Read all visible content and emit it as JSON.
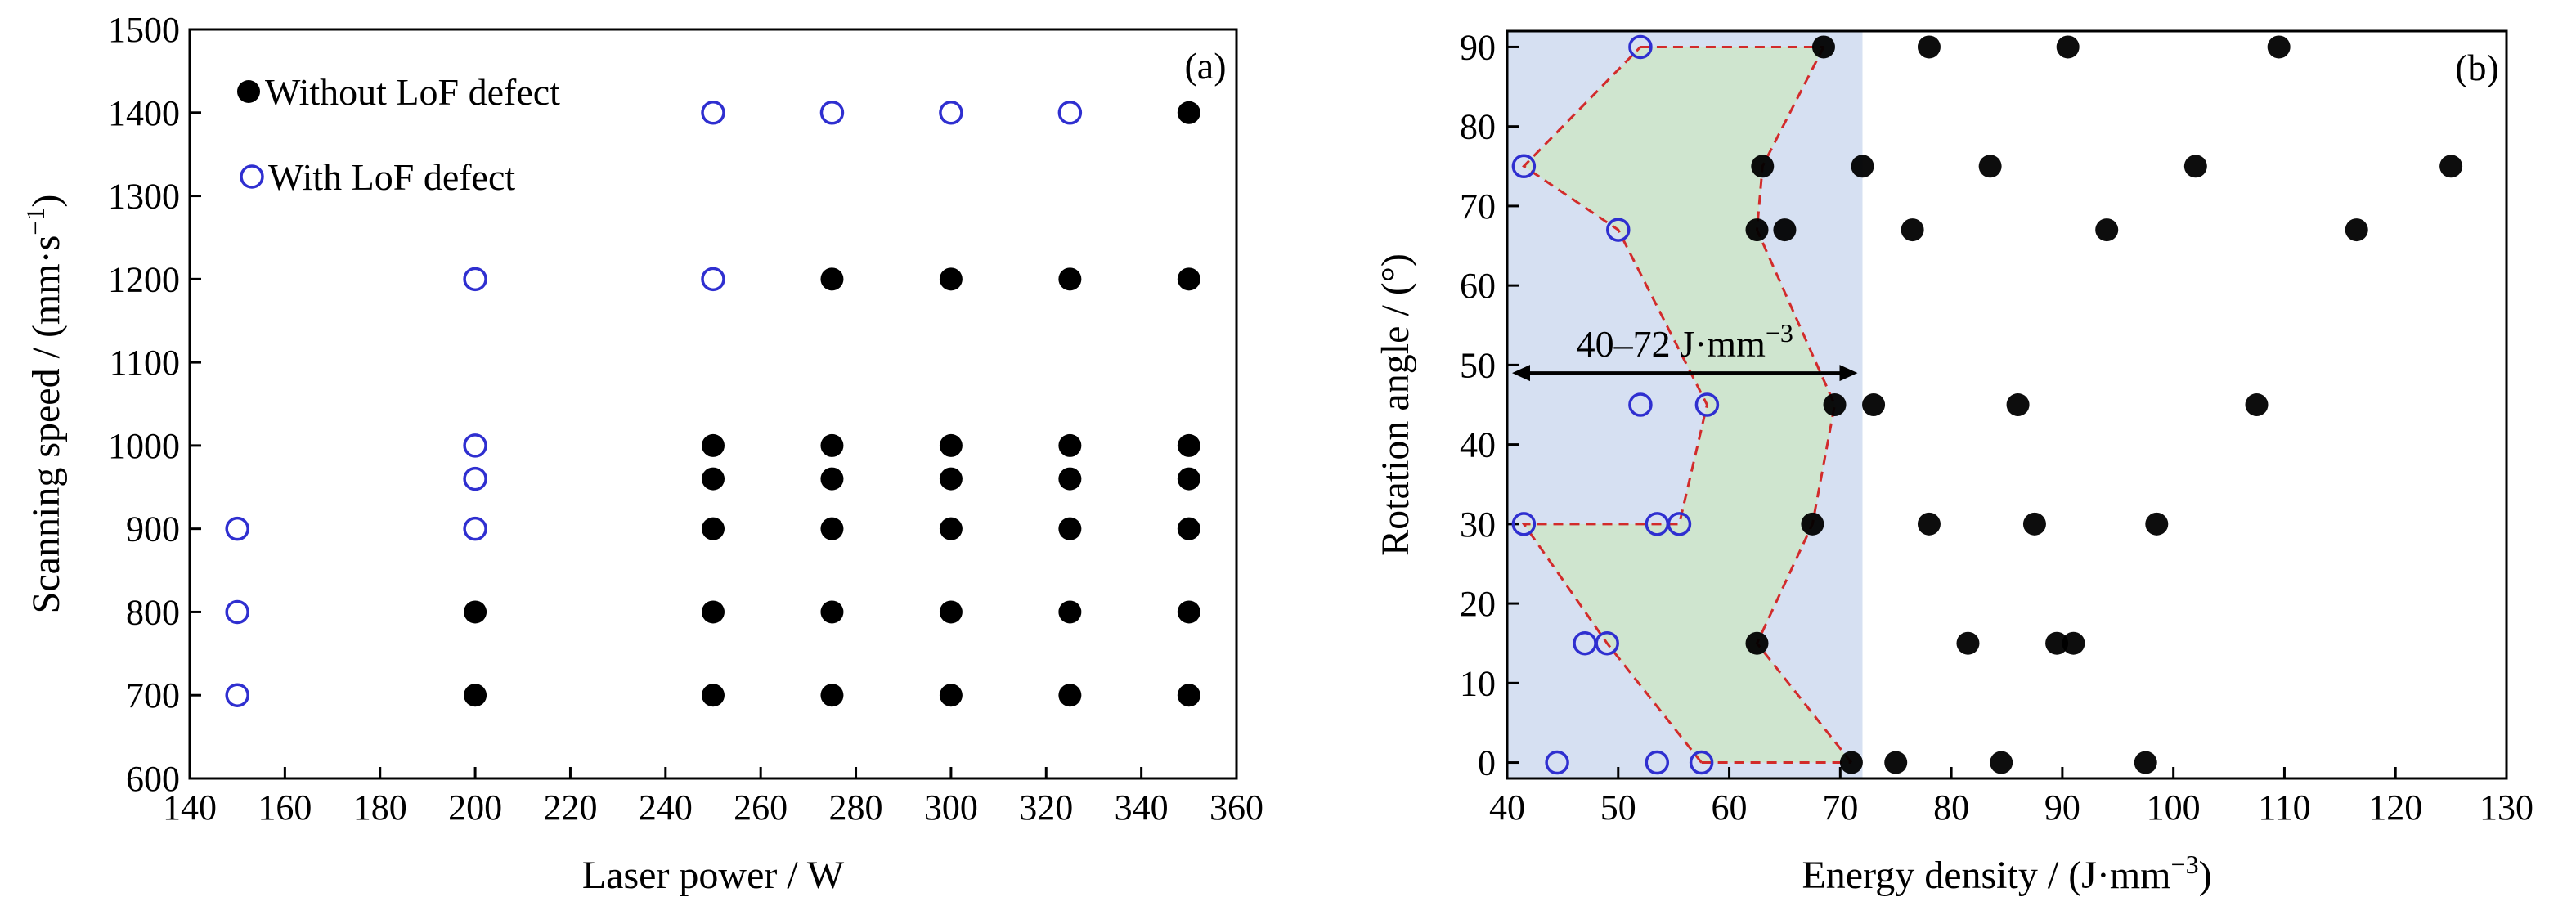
{
  "chart_data": [
    {
      "panel_label": "(a)",
      "type": "scatter",
      "xlabel": "Laser power / W",
      "ylabel_main": "Scanning speed / (mm·s",
      "ylabel_sup": "−1",
      "ylabel_end": ")",
      "xlim": [
        140,
        360
      ],
      "ylim": [
        600,
        1500
      ],
      "xticks": [
        "140",
        "160",
        "180",
        "200",
        "220",
        "240",
        "260",
        "280",
        "300",
        "320",
        "340",
        "360"
      ],
      "yticks": [
        "600",
        "700",
        "800",
        "900",
        "1000",
        "1100",
        "1200",
        "1300",
        "1400",
        "1500"
      ],
      "legend_position": "top-left",
      "series": [
        {
          "name": "Without LoF defect",
          "marker": "filled-circle",
          "color": "#000000",
          "points": [
            [
              200,
              700
            ],
            [
              200,
              800
            ],
            [
              250,
              700
            ],
            [
              250,
              800
            ],
            [
              250,
              900
            ],
            [
              250,
              960
            ],
            [
              250,
              1000
            ],
            [
              275,
              700
            ],
            [
              275,
              800
            ],
            [
              275,
              900
            ],
            [
              275,
              960
            ],
            [
              275,
              1000
            ],
            [
              275,
              1200
            ],
            [
              300,
              700
            ],
            [
              300,
              800
            ],
            [
              300,
              900
            ],
            [
              300,
              960
            ],
            [
              300,
              1000
            ],
            [
              300,
              1200
            ],
            [
              325,
              700
            ],
            [
              325,
              800
            ],
            [
              325,
              900
            ],
            [
              325,
              960
            ],
            [
              325,
              1000
            ],
            [
              325,
              1200
            ],
            [
              350,
              700
            ],
            [
              350,
              800
            ],
            [
              350,
              900
            ],
            [
              350,
              960
            ],
            [
              350,
              1000
            ],
            [
              350,
              1200
            ],
            [
              350,
              1400
            ]
          ]
        },
        {
          "name": "With LoF defect",
          "marker": "open-circle",
          "color": "#2f2fd0",
          "points": [
            [
              150,
              700
            ],
            [
              150,
              800
            ],
            [
              150,
              900
            ],
            [
              200,
              900
            ],
            [
              200,
              960
            ],
            [
              200,
              1000
            ],
            [
              200,
              1200
            ],
            [
              250,
              1200
            ],
            [
              250,
              1400
            ],
            [
              275,
              1400
            ],
            [
              300,
              1400
            ],
            [
              325,
              1400
            ]
          ]
        }
      ]
    },
    {
      "panel_label": "(b)",
      "type": "scatter",
      "xlabel_main": "Energy density / (J·mm",
      "xlabel_sup": "−3",
      "xlabel_end": ")",
      "ylabel": "Rotation angle / (°)",
      "xlim": [
        40,
        130
      ],
      "ylim": [
        -2,
        92
      ],
      "xticks": [
        "40",
        "50",
        "60",
        "70",
        "80",
        "90",
        "100",
        "110",
        "120",
        "130"
      ],
      "yticks": [
        "0",
        "10",
        "20",
        "30",
        "40",
        "50",
        "60",
        "70",
        "80",
        "90"
      ],
      "shaded_region": {
        "x_range": [
          40,
          72
        ],
        "color": "#d6e0f2"
      },
      "annotation_main": "40–72 J·mm",
      "annotation_sup": "−3",
      "annotation_arrow_x": [
        40,
        72
      ],
      "annotation_arrow_y": 49,
      "boundary_color": "#d22b2b",
      "fill_color": "#cfe5cf",
      "lower_boundary": [
        [
          57.5,
          0
        ],
        [
          49,
          15
        ],
        [
          41.5,
          30
        ],
        [
          55.5,
          30
        ],
        [
          58,
          45
        ],
        [
          50,
          67
        ],
        [
          41.5,
          75
        ],
        [
          52,
          90
        ]
      ],
      "upper_boundary": [
        [
          71,
          0
        ],
        [
          62.5,
          15
        ],
        [
          67.5,
          30
        ],
        [
          69.5,
          45
        ],
        [
          62.5,
          67
        ],
        [
          63,
          75
        ],
        [
          68.5,
          90
        ]
      ],
      "series": [
        {
          "name": "Without LoF defect",
          "marker": "filled-circle",
          "color": "#000000",
          "points": [
            [
              71,
              0
            ],
            [
              75,
              0
            ],
            [
              84.5,
              0
            ],
            [
              97.5,
              0
            ],
            [
              62.5,
              15
            ],
            [
              81.5,
              15
            ],
            [
              89.5,
              15
            ],
            [
              91,
              15
            ],
            [
              67.5,
              30
            ],
            [
              78,
              30
            ],
            [
              87.5,
              30
            ],
            [
              98.5,
              30
            ],
            [
              69.5,
              45
            ],
            [
              73,
              45
            ],
            [
              86,
              45
            ],
            [
              107.5,
              45
            ],
            [
              62.5,
              67
            ],
            [
              65,
              67
            ],
            [
              76.5,
              67
            ],
            [
              94,
              67
            ],
            [
              116.5,
              67
            ],
            [
              63,
              75
            ],
            [
              72,
              75
            ],
            [
              83.5,
              75
            ],
            [
              102,
              75
            ],
            [
              125,
              75
            ],
            [
              68.5,
              90
            ],
            [
              78,
              90
            ],
            [
              90.5,
              90
            ],
            [
              109.5,
              90
            ]
          ]
        },
        {
          "name": "With LoF defect",
          "marker": "open-circle",
          "color": "#2f2fd0",
          "points": [
            [
              44.5,
              0
            ],
            [
              53.5,
              0
            ],
            [
              57.5,
              0
            ],
            [
              47,
              15
            ],
            [
              49,
              15
            ],
            [
              41.5,
              30
            ],
            [
              53.5,
              30
            ],
            [
              55.5,
              30
            ],
            [
              52,
              45
            ],
            [
              58,
              45
            ],
            [
              50,
              67
            ],
            [
              41.5,
              75
            ],
            [
              52,
              90
            ]
          ]
        }
      ]
    }
  ]
}
